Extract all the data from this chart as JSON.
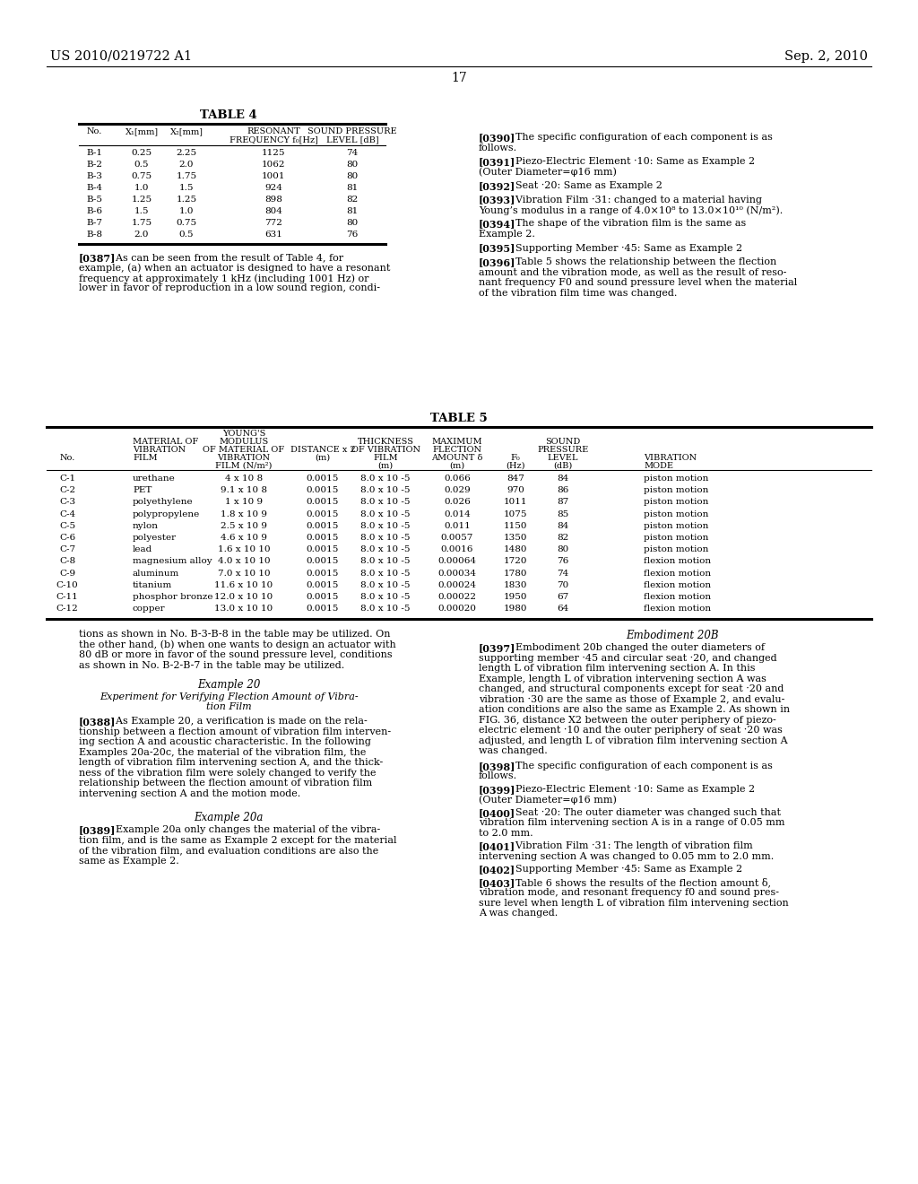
{
  "bg_color": "#ffffff",
  "header_left": "US 2010/0219722 A1",
  "header_right": "Sep. 2, 2010",
  "page_number": "17",
  "table4_title": "TABLE 4",
  "table4_data": [
    [
      "B-1",
      "0.25",
      "2.25",
      "1125",
      "74"
    ],
    [
      "B-2",
      "0.5",
      "2.0",
      "1062",
      "80"
    ],
    [
      "B-3",
      "0.75",
      "1.75",
      "1001",
      "80"
    ],
    [
      "B-4",
      "1.0",
      "1.5",
      "924",
      "81"
    ],
    [
      "B-5",
      "1.25",
      "1.25",
      "898",
      "82"
    ],
    [
      "B-6",
      "1.5",
      "1.0",
      "804",
      "81"
    ],
    [
      "B-7",
      "1.75",
      "0.75",
      "772",
      "80"
    ],
    [
      "B-8",
      "2.0",
      "0.5",
      "631",
      "76"
    ]
  ],
  "table5_title": "TABLE 5",
  "table5_data": [
    [
      "C-1",
      "urethane",
      "4 x 10 8",
      "0.0015",
      "8.0 x 10 -5",
      "0.066",
      "847",
      "84",
      "piston motion"
    ],
    [
      "C-2",
      "PET",
      "9.1 x 10 8",
      "0.0015",
      "8.0 x 10 -5",
      "0.029",
      "970",
      "86",
      "piston motion"
    ],
    [
      "C-3",
      "polyethylene",
      "1 x 10 9",
      "0.0015",
      "8.0 x 10 -5",
      "0.026",
      "1011",
      "87",
      "piston motion"
    ],
    [
      "C-4",
      "polypropylene",
      "1.8 x 10 9",
      "0.0015",
      "8.0 x 10 -5",
      "0.014",
      "1075",
      "85",
      "piston motion"
    ],
    [
      "C-5",
      "nylon",
      "2.5 x 10 9",
      "0.0015",
      "8.0 x 10 -5",
      "0.011",
      "1150",
      "84",
      "piston motion"
    ],
    [
      "C-6",
      "polyester",
      "4.6 x 10 9",
      "0.0015",
      "8.0 x 10 -5",
      "0.0057",
      "1350",
      "82",
      "piston motion"
    ],
    [
      "C-7",
      "lead",
      "1.6 x 10 10",
      "0.0015",
      "8.0 x 10 -5",
      "0.0016",
      "1480",
      "80",
      "piston motion"
    ],
    [
      "C-8",
      "magnesium alloy",
      "4.0 x 10 10",
      "0.0015",
      "8.0 x 10 -5",
      "0.00064",
      "1720",
      "76",
      "flexion motion"
    ],
    [
      "C-9",
      "aluminum",
      "7.0 x 10 10",
      "0.0015",
      "8.0 x 10 -5",
      "0.00034",
      "1780",
      "74",
      "flexion motion"
    ],
    [
      "C-10",
      "titanium",
      "11.6 x 10 10",
      "0.0015",
      "8.0 x 10 -5",
      "0.00024",
      "1830",
      "70",
      "flexion motion"
    ],
    [
      "C-11",
      "phosphor bronze",
      "12.0 x 10 10",
      "0.0015",
      "8.0 x 10 -5",
      "0.00022",
      "1950",
      "67",
      "flexion motion"
    ],
    [
      "C-12",
      "copper",
      "13.0 x 10 10",
      "0.0015",
      "8.0 x 10 -5",
      "0.00020",
      "1980",
      "64",
      "flexion motion"
    ]
  ]
}
